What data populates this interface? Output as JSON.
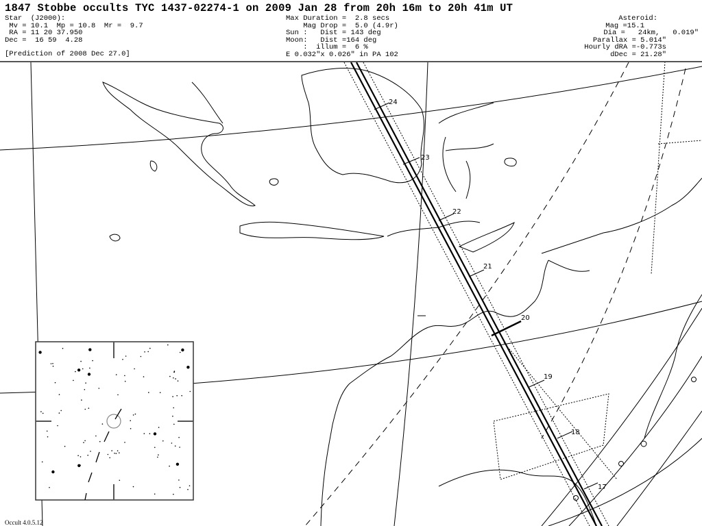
{
  "header": {
    "title": "1847 Stobbe occults TYC 1437-02274-1 on 2009 Jan 28 from 20h 16m to 20h 41m UT",
    "star": {
      "heading": "Star  (J2000):",
      "mags": " Mv = 10.1  Mp = 10.8  Mr =  9.7",
      "ra": " RA = 11 20 37.950",
      "dec": "Dec =  16 59  4.28",
      "prediction": "[Prediction of 2008 Dec 27.0]"
    },
    "event": {
      "max_duration": "Max Duration =  2.8 secs",
      "mag_drop": "    Mag Drop =  5.0 (4.9r)",
      "sun": "Sun :   Dist = 143 deg",
      "moon": "Moon:   Dist =164 deg",
      "illum": "    :  illum =  6 %",
      "ellipse": "E 0.032\"x 0.026\" in PA 102"
    },
    "asteroid": {
      "heading": "Asteroid:",
      "mag": "Mag =15.1",
      "dia": "Dia =   24km,   0.019\"",
      "parallax": "Parallax = 5.014\"",
      "hourly_dra": "Hourly dRA =-0.773s",
      "ddec": "dDec = 21.28\""
    }
  },
  "map": {
    "time_labels": [
      "24",
      "23",
      "22",
      "21",
      "20",
      "19",
      "18",
      "17"
    ],
    "path_color": "#000000",
    "coast_color": "#000000"
  },
  "inset": {
    "type": "star-chart"
  },
  "footer": {
    "version": "Occult 4.0.5.12"
  }
}
